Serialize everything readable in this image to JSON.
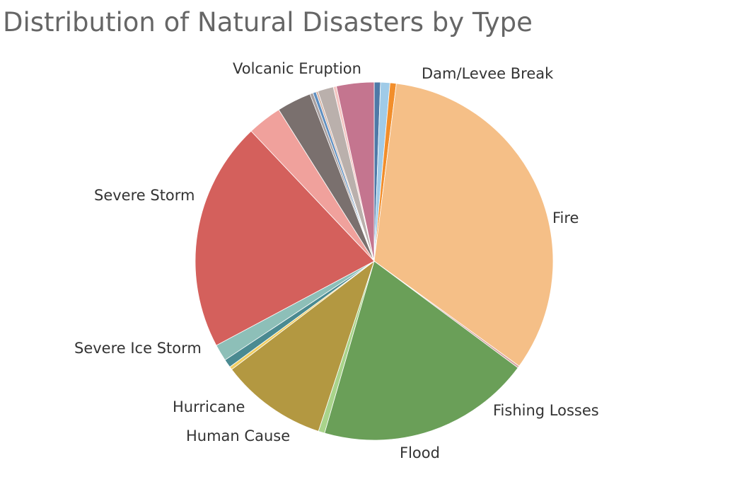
{
  "chart_data": {
    "type": "pie",
    "title": "Distribution of Natural Disasters by Type",
    "start_angle_deg": 0,
    "direction": "clockwise",
    "slices": [
      {
        "label": "Dam/Levee Break",
        "value": 0.6,
        "color": "#4e79a7"
      },
      {
        "label": "",
        "value": 0.9,
        "color": "#a0cbe8"
      },
      {
        "label": "",
        "value": 0.6,
        "color": "#f28e2b"
      },
      {
        "label": "Fire",
        "value": 35.0,
        "color": "#f5bf87"
      },
      {
        "label": "Fishing Losses",
        "value": 0.2,
        "color": "#d8a3a0"
      },
      {
        "label": "Flood",
        "value": 20.5,
        "color": "#6a9f58"
      },
      {
        "label": "Human Cause",
        "value": 0.6,
        "color": "#a9d48b"
      },
      {
        "label": "Hurricane",
        "value": 10.2,
        "color": "#b39841"
      },
      {
        "label": "",
        "value": 0.3,
        "color": "#f1ce63"
      },
      {
        "label": "",
        "value": 0.8,
        "color": "#4a8a91"
      },
      {
        "label": "Severe Ice Storm",
        "value": 1.6,
        "color": "#8dbfb8"
      },
      {
        "label": "Severe Storm",
        "value": 22.0,
        "color": "#d4605c"
      },
      {
        "label": "",
        "value": 3.3,
        "color": "#f0a19c"
      },
      {
        "label": "",
        "value": 3.3,
        "color": "#7a706e"
      },
      {
        "label": "Volcanic Eruption",
        "value": 0.3,
        "color": "#a9a0a0"
      },
      {
        "label": "",
        "value": 0.3,
        "color": "#5f8fc0"
      },
      {
        "label": "",
        "value": 0.2,
        "color": "#d7b5a6"
      },
      {
        "label": "",
        "value": 1.5,
        "color": "#bab0ac"
      },
      {
        "label": "",
        "value": 0.3,
        "color": "#f4c6c2"
      },
      {
        "label": "",
        "value": 3.6,
        "color": "#c4758f"
      }
    ]
  }
}
